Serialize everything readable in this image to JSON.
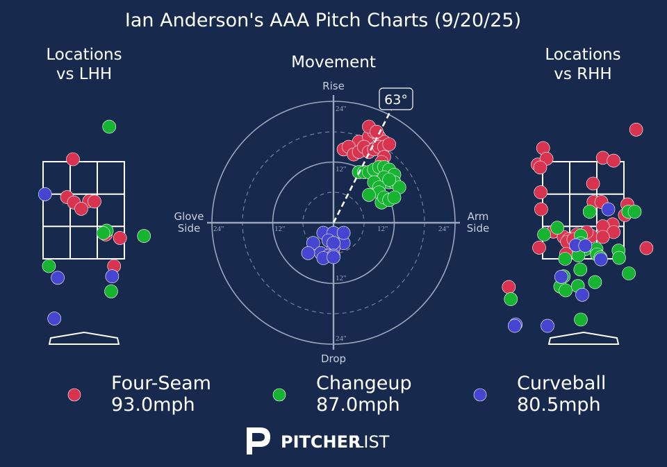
{
  "title": "Ian Anderson's AAA Pitch Charts (9/20/25)",
  "colors": {
    "background": "#172a4e",
    "four_seam": "#d9344f",
    "changeup": "#16b430",
    "curveball": "#4545d2",
    "line": "#ffffff",
    "ring": "#9aa6bd"
  },
  "panels": {
    "lhh_title_1": "Locations",
    "lhh_title_2": "vs LHH",
    "rhh_title_1": "Locations",
    "rhh_title_2": "vs RHH",
    "movement_title": "Movement"
  },
  "movement_labels": {
    "rise": "Rise",
    "drop": "Drop",
    "glove_1": "Glove",
    "glove_2": "Side",
    "arm_1": "Arm",
    "arm_2": "Side",
    "arm_angle": "63°",
    "ring_24": "24\"",
    "ring_12": "12\""
  },
  "legend": [
    {
      "name": "Four-Seam",
      "velo": "93.0mph",
      "color": "#d9344f"
    },
    {
      "name": "Changeup",
      "velo": "87.0mph",
      "color": "#16b430"
    },
    {
      "name": "Curveball",
      "velo": "80.5mph",
      "color": "#4545d2"
    }
  ],
  "brand": {
    "pitcher": "PITCHER",
    "list": "LIST",
    "logo_icon": "pitcherlist-logo-icon"
  },
  "chart_data": [
    {
      "type": "scatter",
      "title": "Locations vs LHH",
      "series": [
        {
          "name": "Four-Seam",
          "points": [
            [
              -0.22,
              3.55
            ],
            [
              -0.34,
              2.77
            ],
            [
              -0.2,
              2.66
            ],
            [
              0.11,
              2.69
            ],
            [
              0.22,
              2.68
            ],
            [
              -0.05,
              2.53
            ],
            [
              0.45,
              2.0
            ],
            [
              0.74,
              1.93
            ],
            [
              0.62,
              1.35
            ]
          ]
        },
        {
          "name": "Changeup",
          "points": [
            [
              0.52,
              4.22
            ],
            [
              0.47,
              2.08
            ],
            [
              0.4,
              2.03
            ],
            [
              1.23,
              1.97
            ],
            [
              -0.71,
              1.35
            ],
            [
              0.56,
              0.83
            ]
          ]
        },
        {
          "name": "Curveball",
          "points": [
            [
              -0.79,
              2.83
            ],
            [
              -0.53,
              1.11
            ],
            [
              0.58,
              1.14
            ],
            [
              -0.6,
              0.27
            ]
          ]
        }
      ]
    },
    {
      "type": "scatter",
      "title": "Movement",
      "xlabel": "Arm Side",
      "ylabel": "Rise",
      "xlim": [
        -24,
        24
      ],
      "ylim": [
        -24,
        24
      ],
      "arm_angle_deg": 63,
      "series": [
        {
          "name": "Four-Seam",
          "points": [
            [
              5,
              16
            ],
            [
              7,
              17
            ],
            [
              9,
              17
            ],
            [
              10,
              16
            ],
            [
              8,
              18
            ],
            [
              7,
              19
            ],
            [
              8.5,
              18
            ],
            [
              2,
              14.5
            ],
            [
              3,
              15
            ],
            [
              4,
              13.5
            ],
            [
              5,
              14
            ],
            [
              6,
              15
            ],
            [
              7,
              14
            ],
            [
              8,
              14.5
            ],
            [
              9,
              15
            ],
            [
              10,
              15
            ],
            [
              11,
              15.5
            ],
            [
              10,
              13
            ],
            [
              9.5,
              12
            ]
          ]
        },
        {
          "name": "Changeup",
          "points": [
            [
              5,
              10
            ],
            [
              6,
              10
            ],
            [
              7,
              10
            ],
            [
              8,
              10.5
            ],
            [
              9,
              11
            ],
            [
              10,
              11
            ],
            [
              11,
              10.5
            ],
            [
              12,
              9.5
            ],
            [
              10,
              9
            ],
            [
              11,
              8
            ],
            [
              12,
              8
            ],
            [
              13,
              7
            ],
            [
              8,
              8
            ],
            [
              9,
              7
            ],
            [
              9,
              6
            ],
            [
              7,
              5.5
            ],
            [
              9.5,
              4
            ],
            [
              10,
              5
            ],
            [
              11,
              4.5
            ],
            [
              12,
              5
            ],
            [
              11,
              8.5
            ]
          ]
        },
        {
          "name": "Curveball",
          "points": [
            [
              -2,
              -2
            ],
            [
              0,
              -2
            ],
            [
              -1,
              -3.5
            ],
            [
              2,
              -4
            ],
            [
              -4,
              -4
            ],
            [
              -2.5,
              -6
            ],
            [
              -5,
              -6
            ],
            [
              0,
              -5
            ],
            [
              0,
              -4
            ],
            [
              -1,
              -6.5
            ],
            [
              0,
              -6.5
            ],
            [
              -2,
              -7
            ],
            [
              0,
              -6.8
            ],
            [
              2,
              -2
            ]
          ]
        }
      ]
    },
    {
      "type": "scatter",
      "title": "Locations vs RHH",
      "series": [
        {
          "name": "Four-Seam",
          "points": [
            [
              1.08,
              4.16
            ],
            [
              -0.82,
              3.78
            ],
            [
              -0.93,
              3.44
            ],
            [
              -0.75,
              3.56
            ],
            [
              -0.88,
              3.38
            ],
            [
              0.4,
              3.58
            ],
            [
              0.62,
              3.52
            ],
            [
              0.2,
              3.05
            ],
            [
              -0.87,
              2.87
            ],
            [
              0.21,
              2.67
            ],
            [
              0.37,
              2.67
            ],
            [
              0.9,
              2.62
            ],
            [
              -0.86,
              2.52
            ],
            [
              0.6,
              2.21
            ],
            [
              0.4,
              2.17
            ],
            [
              0.62,
              2.05
            ],
            [
              -0.61,
              2.06
            ],
            [
              0.04,
              2.02
            ],
            [
              0.17,
              1.97
            ],
            [
              -0.13,
              2.0
            ],
            [
              -0.4,
              1.95
            ],
            [
              -0.3,
              1.9
            ],
            [
              -0.33,
              1.85
            ],
            [
              1.29,
              1.72
            ],
            [
              -0.9,
              1.73
            ],
            [
              -1.52,
              0.92
            ],
            [
              0.07,
              2.05
            ],
            [
              -0.2,
              1.9
            ],
            [
              0.4,
              1.95
            ],
            [
              -0.1,
              1.8
            ],
            [
              -0.35,
              1.6
            ],
            [
              0.85,
              2.4
            ]
          ]
        },
        {
          "name": "Changeup",
          "points": [
            [
              0.13,
              2.47
            ],
            [
              0.92,
              2.47
            ],
            [
              1.05,
              2.47
            ],
            [
              -0.53,
              2.14
            ],
            [
              -0.8,
              2.0
            ],
            [
              -0.05,
              1.98
            ],
            [
              -0.05,
              1.82
            ],
            [
              0.04,
              1.7
            ],
            [
              0.27,
              1.7
            ],
            [
              0.72,
              1.67
            ],
            [
              0.28,
              1.59
            ],
            [
              0.35,
              1.53
            ],
            [
              -0.37,
              1.5
            ],
            [
              -0.06,
              1.28
            ],
            [
              -0.1,
              1.57
            ],
            [
              0.93,
              1.2
            ],
            [
              -0.4,
              1.14
            ],
            [
              0.24,
              1.02
            ],
            [
              -0.47,
              0.93
            ],
            [
              -0.36,
              0.85
            ],
            [
              -0.11,
              0.94
            ],
            [
              -1.48,
              0.67
            ],
            [
              -0.05,
              0.25
            ],
            [
              0.73,
              1.52
            ]
          ]
        },
        {
          "name": "Curveball",
          "points": [
            [
              0.51,
              2.52
            ],
            [
              -0.15,
              1.78
            ],
            [
              0.04,
              1.77
            ],
            [
              0.36,
              1.49
            ],
            [
              -0.45,
              1.13
            ],
            [
              -0.02,
              0.76
            ],
            [
              -1.38,
              0.15
            ],
            [
              -0.73,
              0.12
            ],
            [
              -1.4,
              0.12
            ]
          ]
        }
      ]
    }
  ]
}
